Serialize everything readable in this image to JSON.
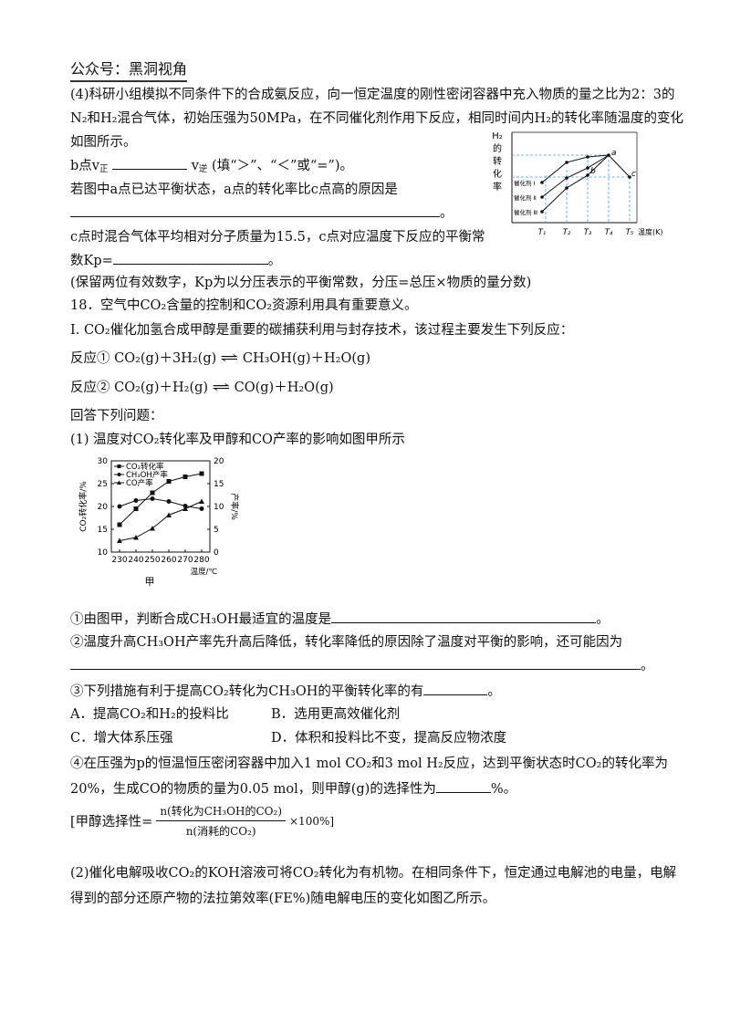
{
  "header": "公众号：黑洞视角",
  "q4": {
    "l1": "(4)科研小组模拟不同条件下的合成氨反应，向一恒定温度的刚性密闭容器中充入物质的量之比为2：3的",
    "l2": "N₂和H₂混合气体，初始压强为50MPa，在不同催化剂作用下反应，相同时间内H₂的转化率随温度的变化",
    "l3": "如图所示。",
    "l4a": "b点v",
    "l4b": "正",
    "l4c": "v",
    "l4d": "逆",
    "l4e": "(填“＞”、“＜”或“=”)。",
    "l5": "若图中a点已达平衡状态，a点的转化率比c点高的原因是",
    "l5end": "。",
    "l6": "c点时混合气体平均相对分子质量为15.5，c点对应温度下反应的平衡常",
    "l7a": "数Kp=",
    "l7end": "。",
    "l8": "(保留两位有效数字，Kp为以分压表示的平衡常数，分压=总压×物质的量分数)"
  },
  "fig1": {
    "ylabel": [
      "H₂",
      "的",
      "转",
      "化",
      "率"
    ],
    "xticks": [
      "T₁",
      "T₂",
      "T₃",
      "T₄",
      "T₅"
    ],
    "xlabel": "温度(K)",
    "legend": [
      "催化剂 Ⅰ",
      "催化剂 Ⅱ",
      "催化剂 Ⅲ"
    ],
    "points": [
      "a",
      "b",
      "c"
    ]
  },
  "q18": {
    "title": "18．空气中CO₂含量的控制和CO₂资源利用具有重要意义。",
    "intro": "I.  CO₂催化加氢合成甲醇是重要的碳捕获利用与封存技术，该过程主要发生下列反应：",
    "r1_label": "反应①",
    "r1_left": "CO₂(g)＋3H₂(g)",
    "r1_right": "CH₃OH(g)＋H₂O(g)",
    "r2_label": "反应②",
    "r2_left": "CO₂(g)＋H₂(g)",
    "r2_right": "CO(g)＋H₂O(g)",
    "eq_symbol": "⇌",
    "answer": "回答下列问题：",
    "p1": "(1) 温度对CO₂转化率及甲醇和CO产率的影响如图甲所示"
  },
  "chart_data": {
    "type": "line",
    "title": "",
    "caption": "甲",
    "xlabel": "温度/℃",
    "ylabel": "CO₂转化率/%",
    "y2label": "产率/%",
    "x": [
      230,
      240,
      250,
      260,
      270,
      280
    ],
    "xticks": [
      "230",
      "240",
      "250",
      "260",
      "270",
      "280"
    ],
    "ylim": [
      10,
      30
    ],
    "yticks": [
      "10",
      "15",
      "20",
      "25",
      "30"
    ],
    "y2lim": [
      0,
      20
    ],
    "y2ticks": [
      "0",
      "5",
      "10",
      "15",
      "20"
    ],
    "series": [
      {
        "name": "CO₂转化率",
        "axis": "left",
        "marker": "square",
        "values": [
          16,
          19.5,
          23,
          25.5,
          26.5,
          27.2
        ]
      },
      {
        "name": "CH₃OH产率",
        "axis": "right",
        "marker": "circle",
        "values": [
          10,
          11.3,
          11.7,
          11.1,
          10.1,
          9.5
        ]
      },
      {
        "name": "CO产率",
        "axis": "right",
        "marker": "triangle",
        "values": [
          2.5,
          3.2,
          5.2,
          8.1,
          9.5,
          11.1
        ]
      }
    ]
  },
  "q1": {
    "s1": "①由图甲，判断合成CH₃OH最适宜的温度是",
    "s1end": "。",
    "s2": "②温度升高CH₃OH产率先升高后降低，转化率降低的原因除了温度对平衡的影响，还可能因为",
    "s2end": "。",
    "s3": "③下列措施有利于提高CO₂转化为CH₃OH的平衡转化率的有",
    "s3end": "。",
    "optA": "A．提高CO₂和H₂的投料比",
    "optB": "B．选用更高效催化剂",
    "optC": "C．增大体系压强",
    "optD": "D．体积和投料比不变，提高反应物浓度",
    "s4a": "④在压强为p的恒温恒压密闭容器中加入1 mol CO₂和3 mol H₂反应，达到平衡状态时CO₂的转化率为",
    "s4b": "20%，生成CO的物质的量为0.05 mol，则甲醇(g)的选择性为",
    "s4end": "%。",
    "sel_pre": "[甲醇选择性=",
    "sel_num": "n(转化为CH₃OH的CO₂)",
    "sel_den": "n(消耗的CO₂)",
    "sel_post": "×100%]"
  },
  "q2": {
    "l1": "(2)催化电解吸收CO₂的KOH溶液可将CO₂转化为有机物。在相同条件下，恒定通过电解池的电量，电解",
    "l2": "得到的部分还原产物的法拉第效率(FE%)随电解电压的变化如图乙所示。"
  }
}
